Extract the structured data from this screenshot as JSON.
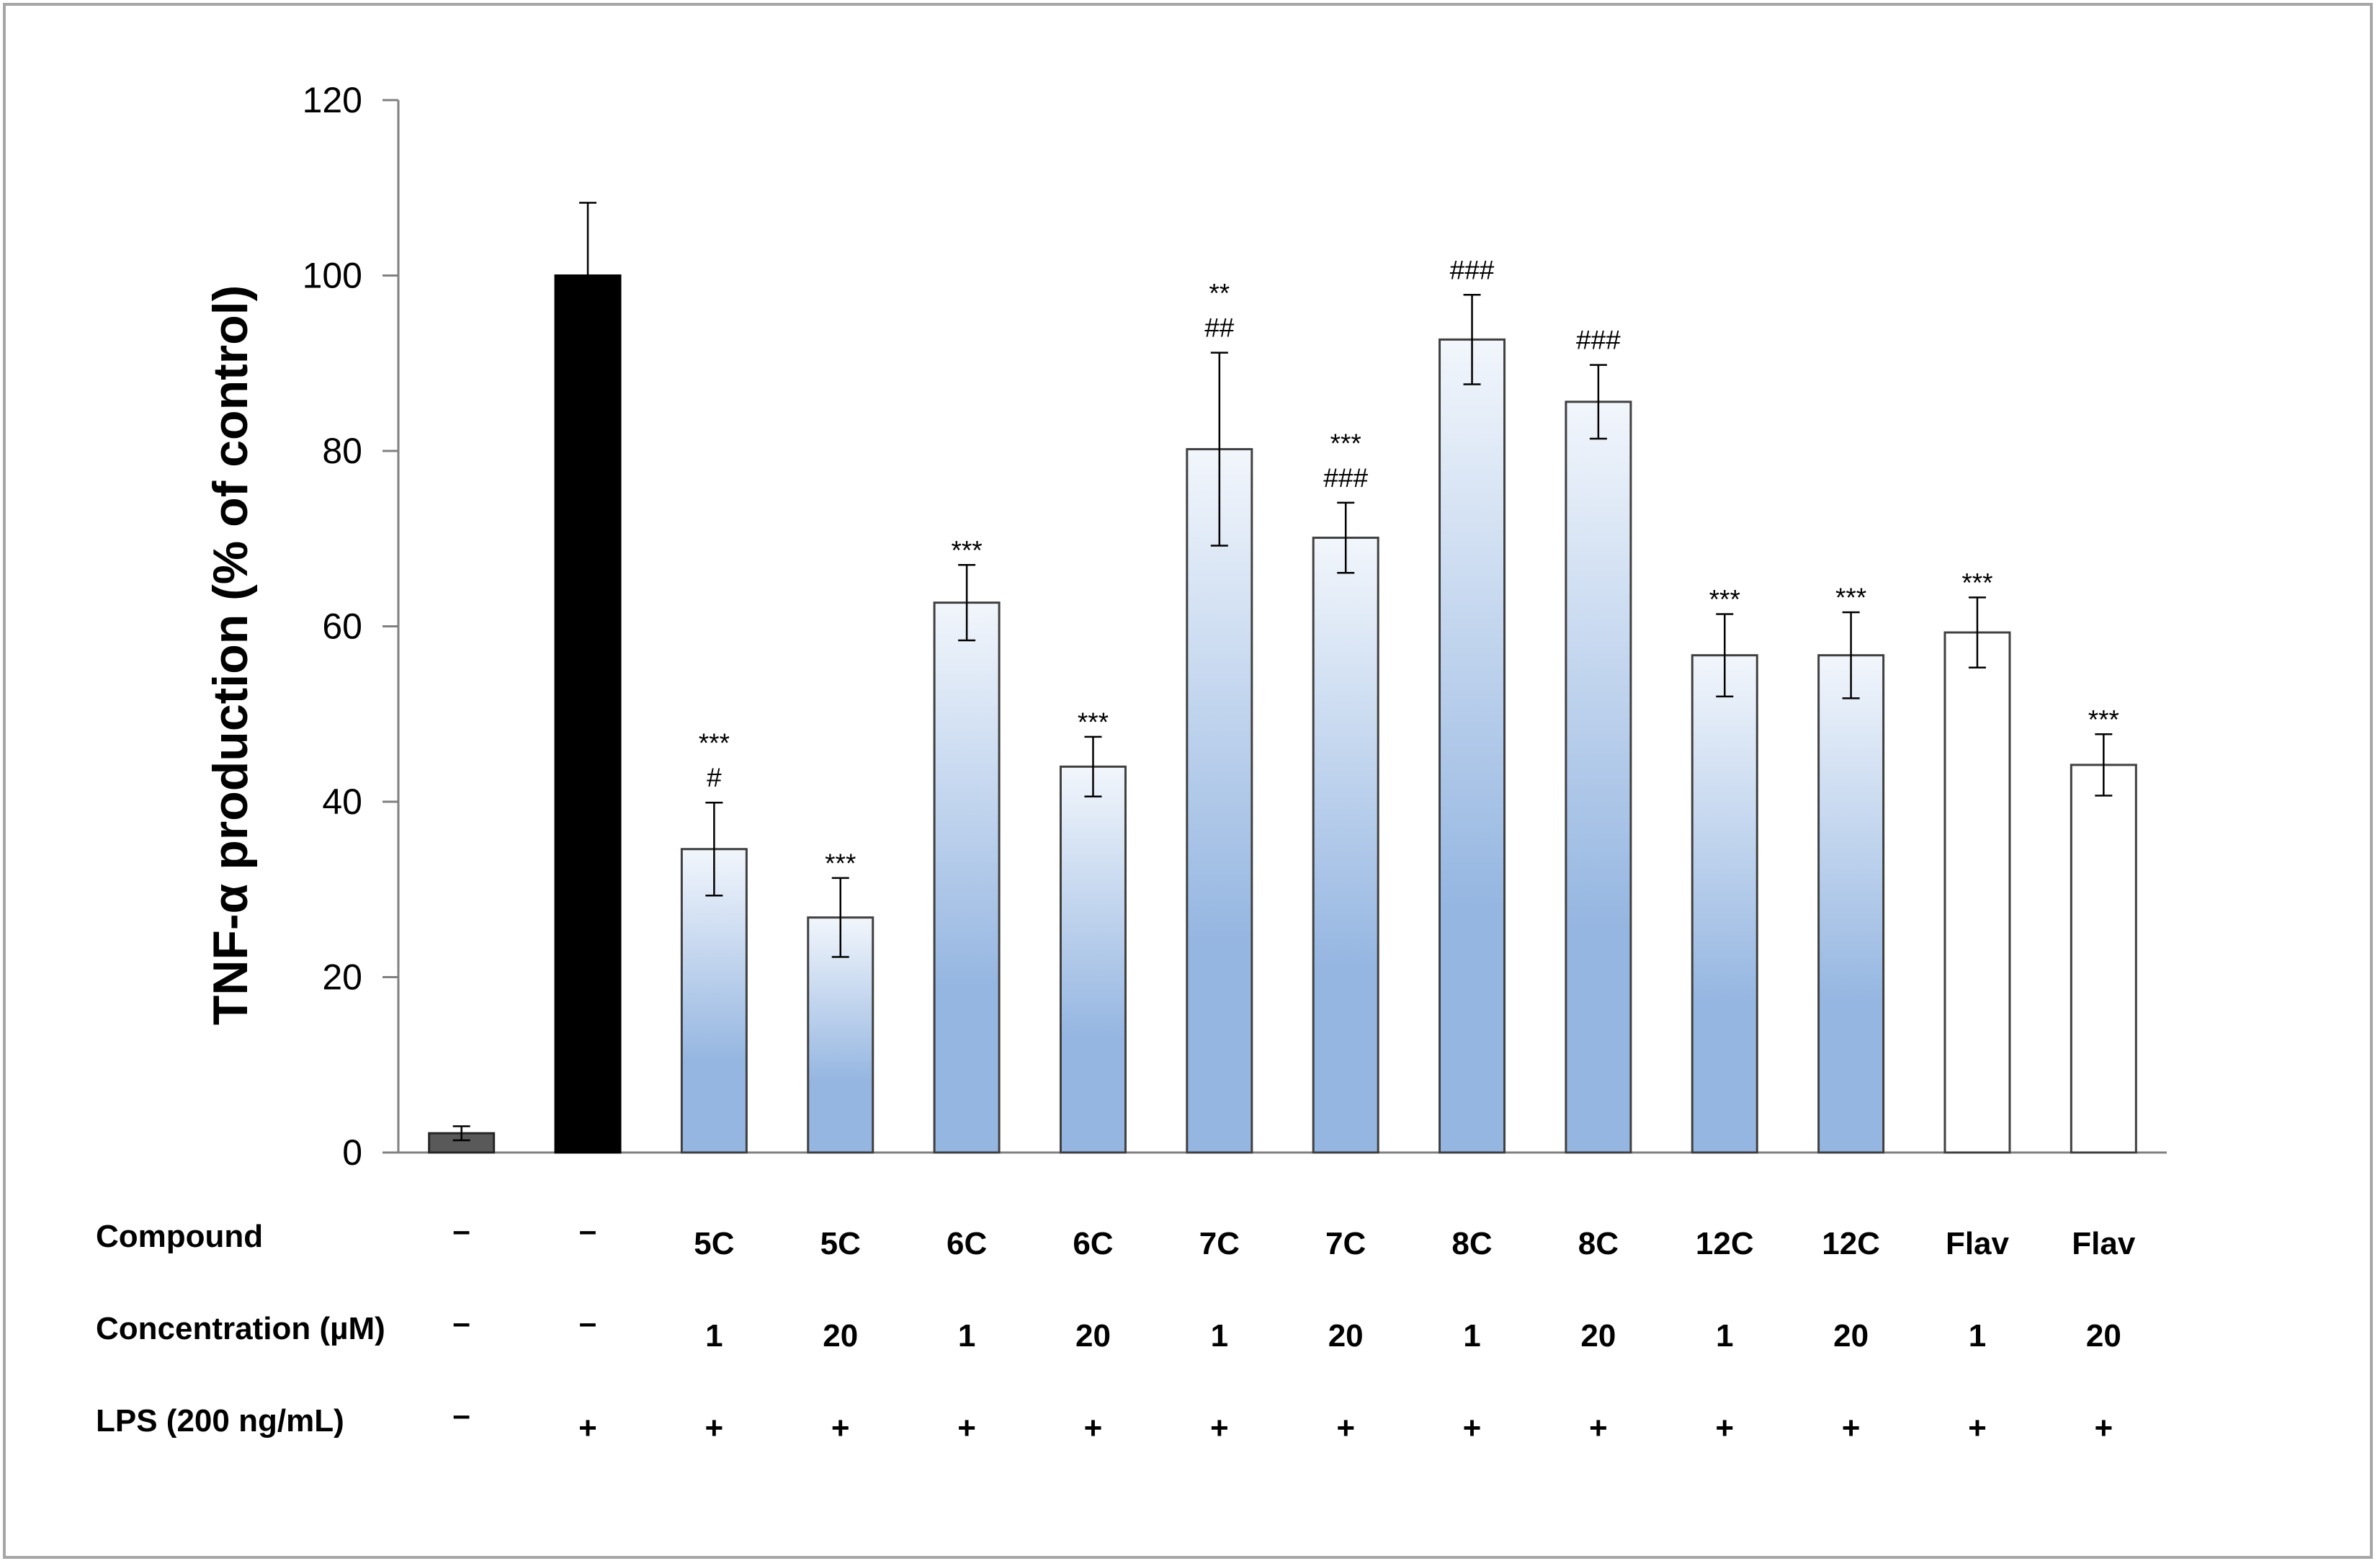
{
  "chart_data": {
    "type": "bar",
    "ylabel": "TNF-α production  (% of control)",
    "ylim": [
      0,
      120
    ],
    "yticks": [
      0,
      20,
      40,
      60,
      80,
      100,
      120
    ],
    "grid": false,
    "bars": [
      {
        "value": 2.2,
        "error": 0.8,
        "style": "control",
        "sig": []
      },
      {
        "value": 100,
        "error": 8.3,
        "style": "lps",
        "sig": []
      },
      {
        "value": 34.6,
        "error": 5.3,
        "style": "gradient",
        "sig": [
          "***",
          "#"
        ]
      },
      {
        "value": 26.8,
        "error": 4.5,
        "style": "gradient",
        "sig": [
          "***"
        ]
      },
      {
        "value": 62.7,
        "error": 4.3,
        "style": "gradient",
        "sig": [
          "***"
        ]
      },
      {
        "value": 44.0,
        "error": 3.4,
        "style": "gradient",
        "sig": [
          "***"
        ]
      },
      {
        "value": 80.2,
        "error": 11.0,
        "style": "gradient",
        "sig": [
          "**",
          "##"
        ]
      },
      {
        "value": 70.1,
        "error": 4.0,
        "style": "gradient",
        "sig": [
          "***",
          "###"
        ]
      },
      {
        "value": 92.7,
        "error": 5.1,
        "style": "gradient",
        "sig": [
          "###"
        ]
      },
      {
        "value": 85.6,
        "error": 4.2,
        "style": "gradient",
        "sig": [
          "###"
        ]
      },
      {
        "value": 56.7,
        "error": 4.7,
        "style": "gradient",
        "sig": [
          "***"
        ]
      },
      {
        "value": 56.7,
        "error": 4.9,
        "style": "gradient",
        "sig": [
          "***"
        ]
      },
      {
        "value": 59.3,
        "error": 4.0,
        "style": "white",
        "sig": [
          "***"
        ]
      },
      {
        "value": 44.2,
        "error": 3.5,
        "style": "white",
        "sig": [
          "***"
        ]
      }
    ],
    "conditions": [
      {
        "label": "Compound",
        "values": [
          "–",
          "–",
          "5C",
          "5C",
          "6C",
          "6C",
          "7C",
          "7C",
          "8C",
          "8C",
          "12C",
          "12C",
          "Flav",
          "Flav"
        ]
      },
      {
        "label": "Concentration (µM)",
        "values": [
          "–",
          "–",
          "1",
          "20",
          "1",
          "20",
          "1",
          "20",
          "1",
          "20",
          "1",
          "20",
          "1",
          "20"
        ]
      },
      {
        "label": "LPS (200 ng/mL)",
        "values": [
          "–",
          "+",
          "+",
          "+",
          "+",
          "+",
          "+",
          "+",
          "+",
          "+",
          "+",
          "+",
          "+",
          "+"
        ]
      }
    ]
  },
  "colors": {
    "control": "#595959",
    "lps": "#000000",
    "gradient_light": "#f2f6fc",
    "gradient_dark": "#95b6e1",
    "white": "#ffffff",
    "outline": "#404040",
    "axis": "#808080"
  }
}
